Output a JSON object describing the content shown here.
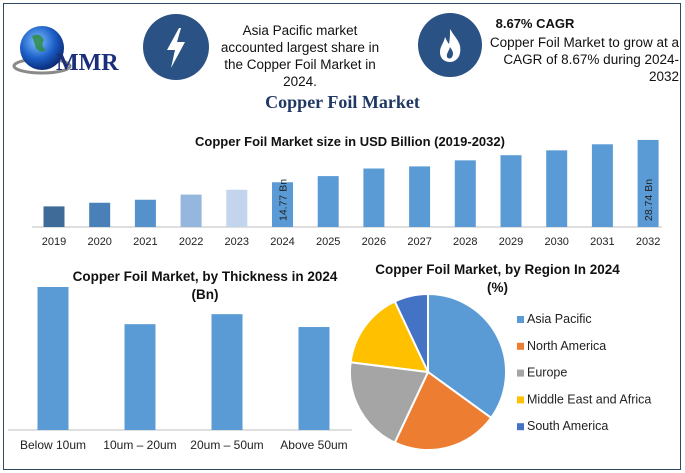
{
  "logo": {
    "text": "MMR"
  },
  "header": {
    "share_text": "Asia Pacific market accounted largest share in the Copper Foil Market in 2024.",
    "cagr_title": "8.67% CAGR",
    "cagr_text": "Copper Foil Market to grow at a CAGR of 8.67% during 2024-2032",
    "icons": [
      "lightning-bolt-icon",
      "flame-icon"
    ]
  },
  "main_title": "Copper Foil Market",
  "colors": {
    "navy": "#2a5284",
    "bar": "#5b9bd5",
    "title": "#1f3864"
  },
  "chart_data": [
    {
      "type": "bar",
      "title": "Copper Foil Market size in USD Billion (2019-2032)",
      "categories": [
        "2019",
        "2020",
        "2021",
        "2022",
        "2023",
        "2024",
        "2025",
        "2026",
        "2027",
        "2028",
        "2029",
        "2030",
        "2031",
        "2032"
      ],
      "values": [
        6.8,
        8.0,
        9.0,
        10.7,
        12.3,
        14.77,
        16.8,
        19.3,
        20.0,
        22.0,
        23.7,
        25.3,
        27.3,
        28.74
      ],
      "data_labels": {
        "2024": "14.77 Bn",
        "2032": "28.74 Bn"
      },
      "bar_colors": [
        "#3e6b98",
        "#4a80b8",
        "#5592cc",
        "#95b6dd",
        "#c3d5ec",
        "#5b9bd5",
        "#5b9bd5",
        "#5b9bd5",
        "#5b9bd5",
        "#5b9bd5",
        "#5b9bd5",
        "#5b9bd5",
        "#5b9bd5",
        "#5b9bd5"
      ],
      "ylim": [
        0,
        30
      ],
      "grid": false
    },
    {
      "type": "bar",
      "title": "Copper Foil Market, by Thickness in 2024",
      "subtitle": "(Bn)",
      "categories": [
        "Below 10um",
        "10um – 20um",
        "20um – 50um",
        "Above 50um"
      ],
      "values": [
        1.0,
        0.74,
        0.81,
        0.72
      ],
      "ylim": [
        0,
        1.05
      ],
      "grid": false
    },
    {
      "type": "pie",
      "title": "Copper Foil Market, by Region In 2024",
      "subtitle": "(%)",
      "labels": [
        "Asia Pacific",
        "North America",
        "Europe",
        "Middle East and Africa",
        "South America"
      ],
      "values": [
        35,
        22,
        20,
        16,
        7
      ],
      "colors": [
        "#5b9bd5",
        "#ed7d31",
        "#a5a5a5",
        "#ffc000",
        "#4472c4"
      ],
      "legend": "right"
    }
  ]
}
